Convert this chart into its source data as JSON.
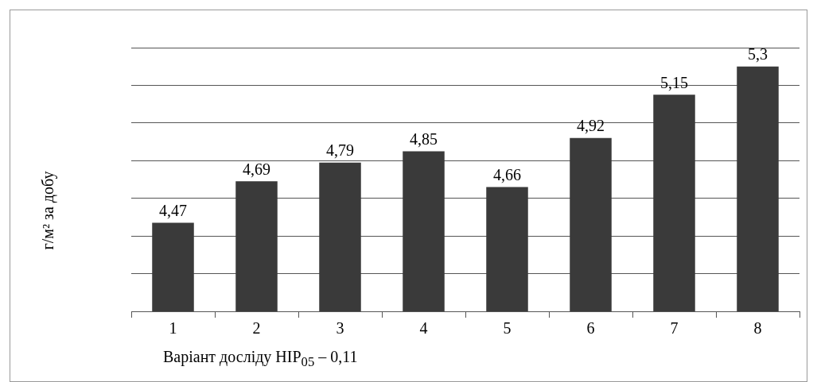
{
  "chart_data": {
    "type": "bar",
    "xlabel": "Варіант досліду НІР$_{05}$ – 0,11",
    "ylabel": "г/м² за добу",
    "categories": [
      "1",
      "2",
      "3",
      "4",
      "5",
      "6",
      "7",
      "8"
    ],
    "values": [
      4.47,
      4.69,
      4.79,
      4.85,
      4.66,
      4.92,
      5.15,
      5.3
    ],
    "value_labels": [
      "4,47",
      "4,69",
      "4,79",
      "4,85",
      "4,66",
      "4,92",
      "5,15",
      "5,3"
    ],
    "color": "#3a3a3a",
    "ylim": [
      4,
      5.4
    ],
    "grid": "y",
    "tick_labels": "x"
  }
}
